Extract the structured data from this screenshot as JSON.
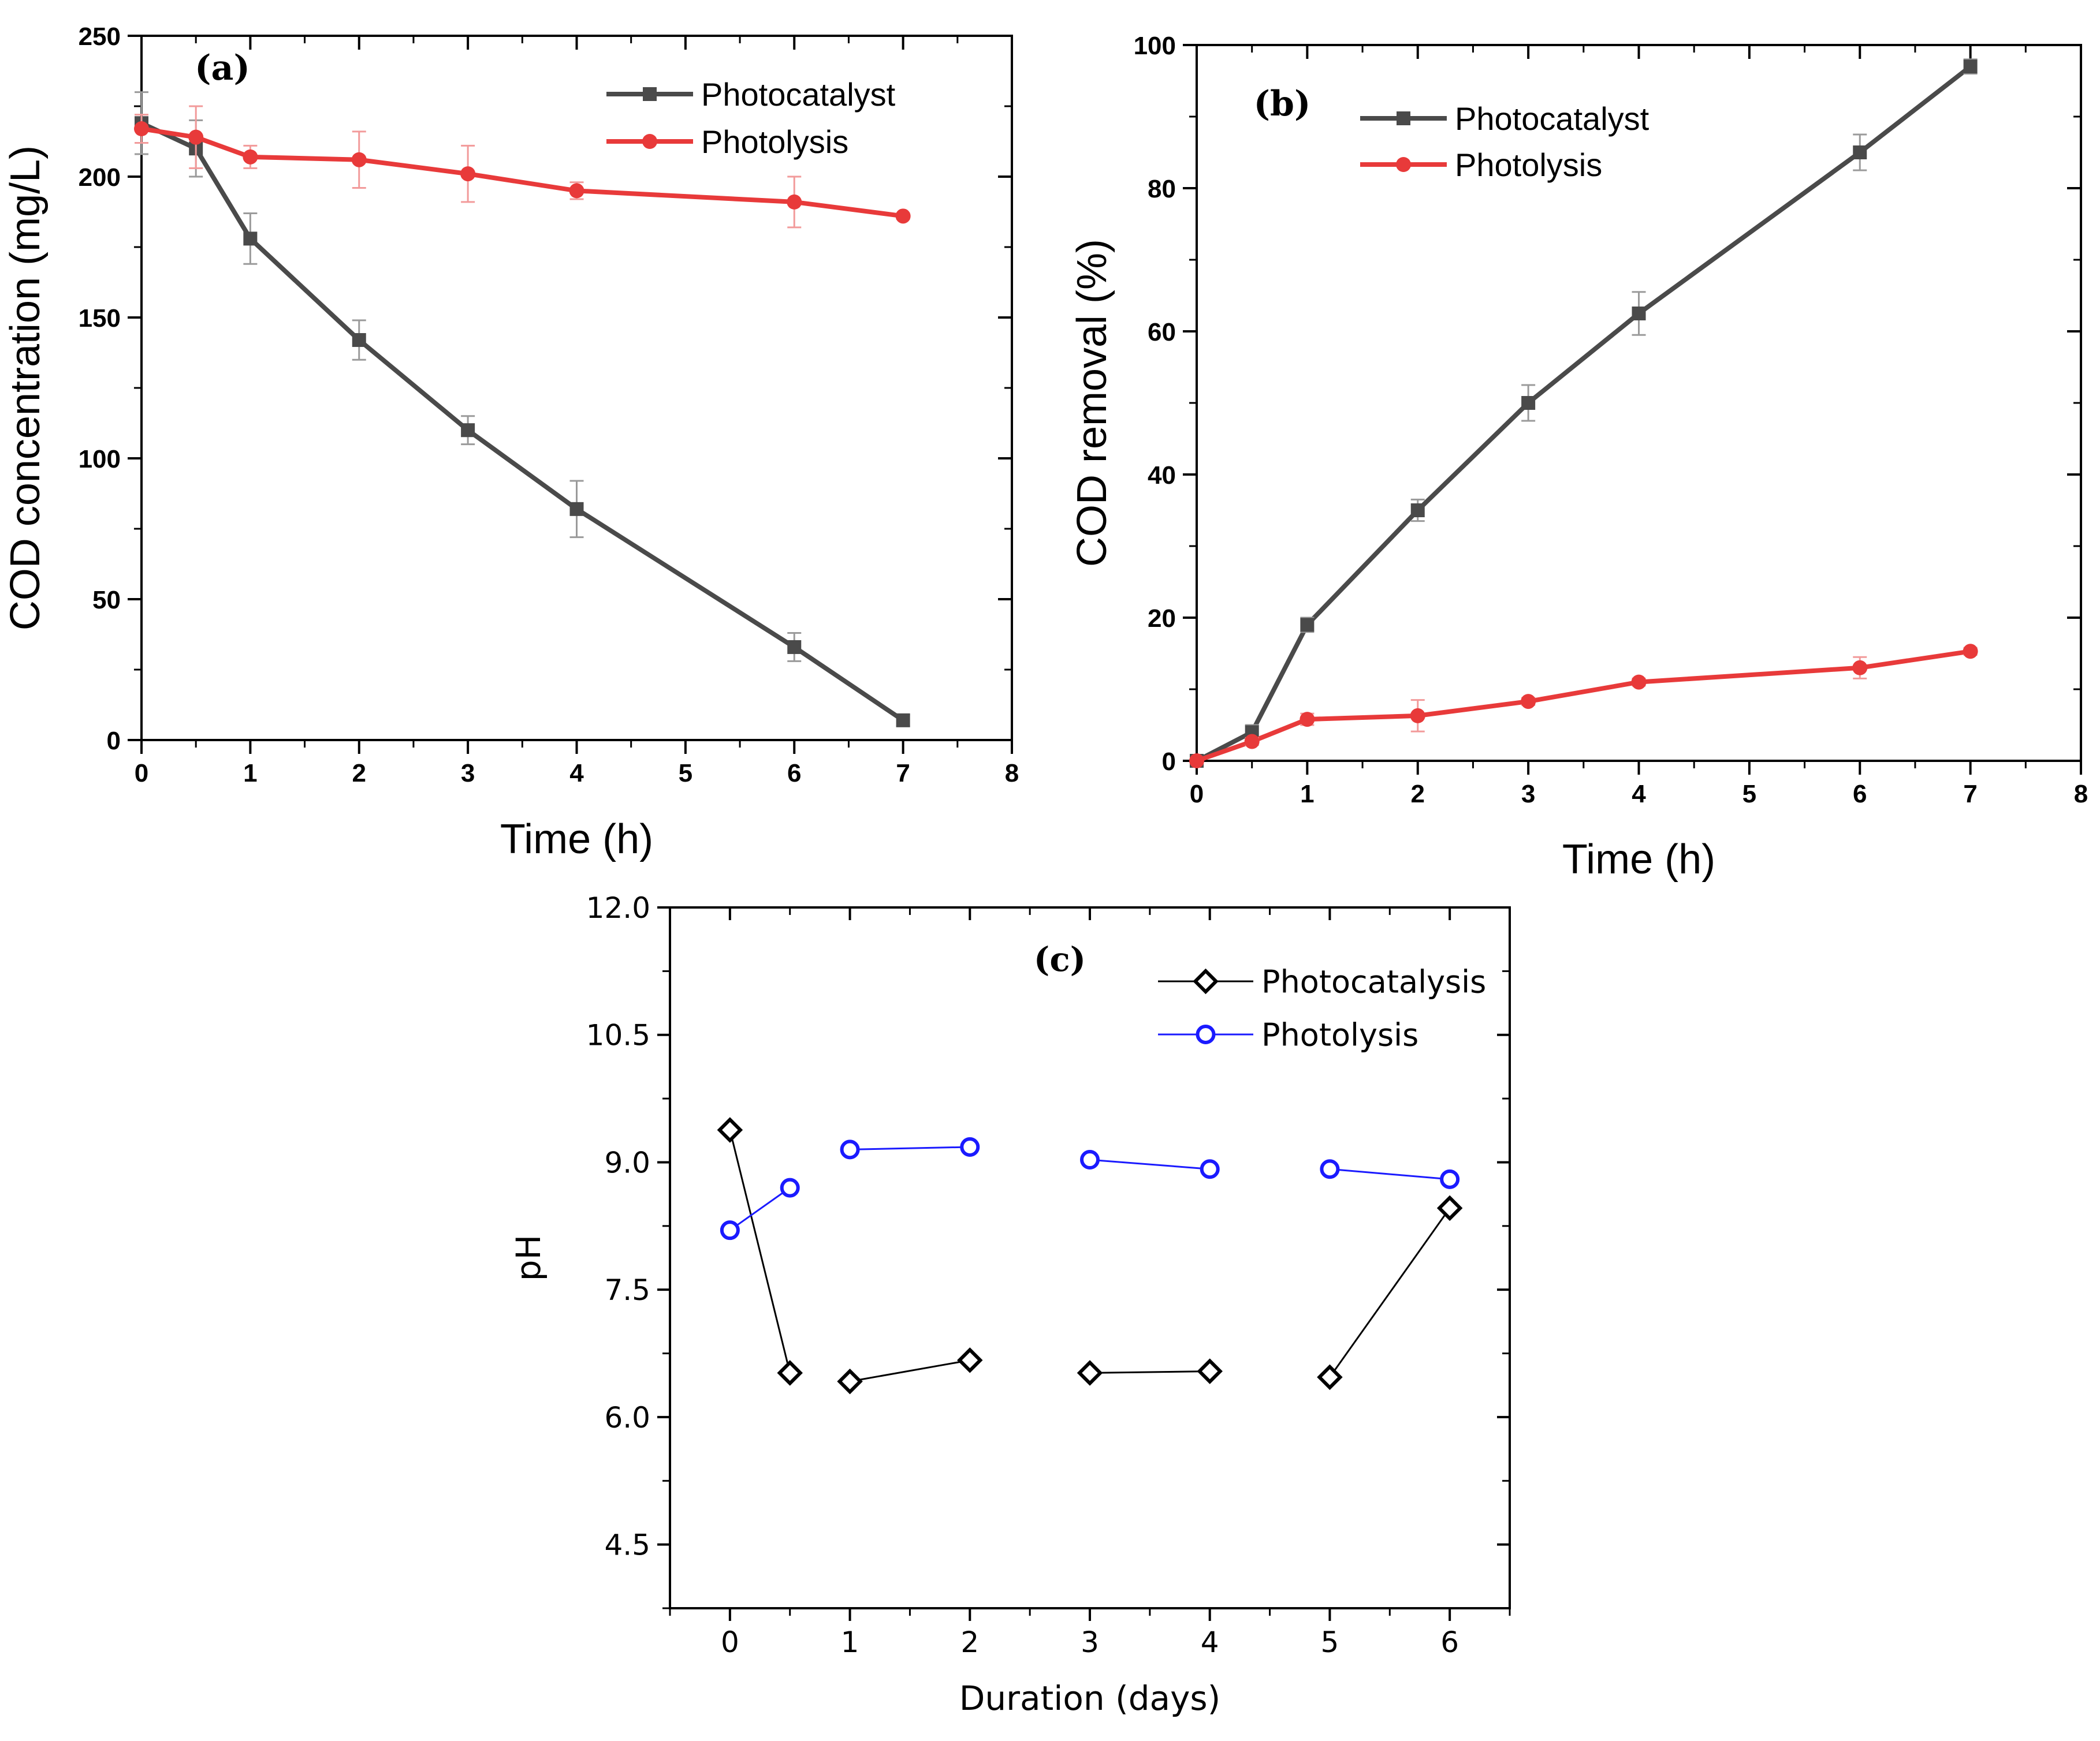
{
  "chart_data": [
    {
      "id": "a",
      "type": "line",
      "panel_label": "(a)",
      "title": "",
      "xlabel": "Time (h)",
      "ylabel": "COD concentration (mg/L)",
      "xlim": [
        0,
        8
      ],
      "ylim": [
        0,
        250
      ],
      "xticks": [
        0,
        1,
        2,
        3,
        4,
        5,
        6,
        7,
        8
      ],
      "yticks": [
        0,
        50,
        100,
        150,
        200,
        250
      ],
      "legend_position": "top-right",
      "series": [
        {
          "name": "Photocatalyst",
          "color": "#4a4a4a",
          "marker": "square",
          "x": [
            0,
            0.5,
            1,
            2,
            3,
            4,
            6,
            7
          ],
          "y": [
            219,
            210,
            178,
            142,
            110,
            82,
            33,
            7
          ],
          "err": [
            11,
            10,
            9,
            7,
            5,
            10,
            5,
            2
          ]
        },
        {
          "name": "Photolysis",
          "color": "#e83a3a",
          "marker": "circle",
          "x": [
            0,
            0.5,
            1,
            2,
            3,
            4,
            6,
            7
          ],
          "y": [
            217,
            214,
            207,
            206,
            201,
            195,
            191,
            186
          ],
          "err": [
            5,
            11,
            4,
            10,
            10,
            3,
            9,
            1
          ]
        }
      ]
    },
    {
      "id": "b",
      "type": "line",
      "panel_label": "(b)",
      "title": "",
      "xlabel": "Time (h)",
      "ylabel": "COD removal (%)",
      "xlim": [
        0,
        8
      ],
      "ylim": [
        0,
        100
      ],
      "xticks": [
        0,
        1,
        2,
        3,
        4,
        5,
        6,
        7,
        8
      ],
      "yticks": [
        0,
        20,
        40,
        60,
        80,
        100
      ],
      "legend_position": "top-left",
      "series": [
        {
          "name": "Photocatalyst",
          "color": "#4a4a4a",
          "marker": "square",
          "x": [
            0,
            0.5,
            1,
            2,
            3,
            4,
            6,
            7
          ],
          "y": [
            0,
            4,
            19,
            35,
            50,
            62.5,
            85,
            97
          ],
          "err": [
            0.5,
            1,
            1,
            1.5,
            2.5,
            3,
            2.5,
            1
          ]
        },
        {
          "name": "Photolysis",
          "color": "#e83a3a",
          "marker": "circle",
          "x": [
            0,
            0.5,
            1,
            2,
            3,
            4,
            6,
            7
          ],
          "y": [
            0,
            2.7,
            5.8,
            6.3,
            8.3,
            11,
            13,
            15.3
          ],
          "err": [
            0.3,
            0.5,
            0.8,
            2.2,
            0.5,
            0.5,
            1.5,
            0.5
          ]
        }
      ]
    },
    {
      "id": "c",
      "type": "line",
      "panel_label": "(c)",
      "title": "",
      "xlabel": "Duration (days)",
      "ylabel": "pH",
      "xlim": [
        -0.5,
        6.5
      ],
      "ylim": [
        3.75,
        12.0
      ],
      "xticks": [
        0,
        1,
        2,
        3,
        4,
        5,
        6
      ],
      "yticks": [
        4.5,
        6.0,
        7.5,
        9.0,
        10.5,
        12.0
      ],
      "ytick_labels": [
        "4.5",
        "6.0",
        "7.5",
        "9.0",
        "10.5",
        "12.0"
      ],
      "legend_position": "top-right",
      "series": [
        {
          "name": "Photocatalysis",
          "color": "#000000",
          "marker": "diamond-open",
          "x": [
            0,
            0.5,
            1,
            2,
            3,
            4,
            5,
            6
          ],
          "y": [
            9.38,
            6.52,
            6.42,
            6.67,
            6.52,
            6.54,
            6.47,
            8.46
          ],
          "segments": [
            [
              0,
              1
            ],
            [
              2,
              3
            ],
            [
              4,
              5
            ],
            [
              6,
              7
            ]
          ]
        },
        {
          "name": "Photolysis",
          "color": "#1a1aff",
          "marker": "circle-open",
          "x": [
            0,
            0.5,
            1,
            2,
            3,
            4,
            5,
            6
          ],
          "y": [
            8.2,
            8.7,
            9.15,
            9.18,
            9.03,
            8.92,
            8.92,
            8.8
          ],
          "segments": [
            [
              0,
              1
            ],
            [
              2,
              3
            ],
            [
              4,
              5
            ],
            [
              6,
              7
            ]
          ]
        }
      ]
    }
  ]
}
